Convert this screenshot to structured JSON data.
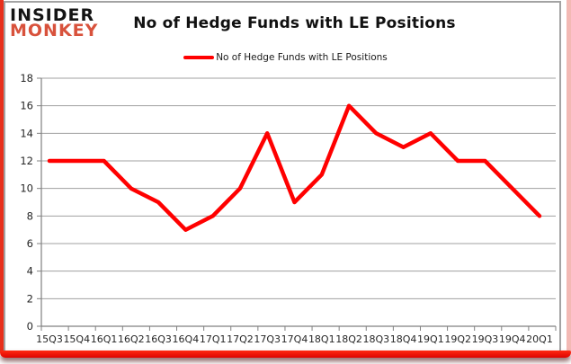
{
  "logo": {
    "line1": "INSIDER",
    "line2": "MONKEY"
  },
  "title": "No of Hedge Funds with LE Positions",
  "legend": {
    "label": "No of Hedge Funds with LE Positions"
  },
  "chart_data": {
    "type": "line",
    "title": "No of Hedge Funds with LE Positions",
    "categories": [
      "15Q3",
      "15Q4",
      "16Q1",
      "16Q2",
      "16Q3",
      "16Q4",
      "17Q1",
      "17Q2",
      "17Q3",
      "17Q4",
      "18Q1",
      "18Q2",
      "18Q3",
      "18Q4",
      "19Q1",
      "19Q2",
      "19Q3",
      "19Q4",
      "20Q1"
    ],
    "series": [
      {
        "name": "No of Hedge Funds with LE Positions",
        "color": "#ff0000",
        "values": [
          12,
          12,
          12,
          10,
          9,
          7,
          8,
          10,
          14,
          9,
          11,
          16,
          14,
          13,
          14,
          12,
          12,
          10,
          8
        ]
      }
    ],
    "ylim": [
      0,
      18
    ],
    "yticks": [
      0,
      2,
      4,
      6,
      8,
      10,
      12,
      14,
      16,
      18
    ],
    "xlabel": "",
    "ylabel": "",
    "grid": true,
    "legend_position": "top-center"
  },
  "colors": {
    "line": "#ff0000",
    "grid": "#a0a0a0",
    "axis": "#808080",
    "tick_text": "#262626",
    "logo_black": "#141414",
    "logo_red": "#d8523c",
    "frame_left_red": "#e8301c",
    "frame_right_pink": "#f3b9b4",
    "bottom_bar_red": "#ee1100",
    "card_border": "#a3a3a3"
  }
}
